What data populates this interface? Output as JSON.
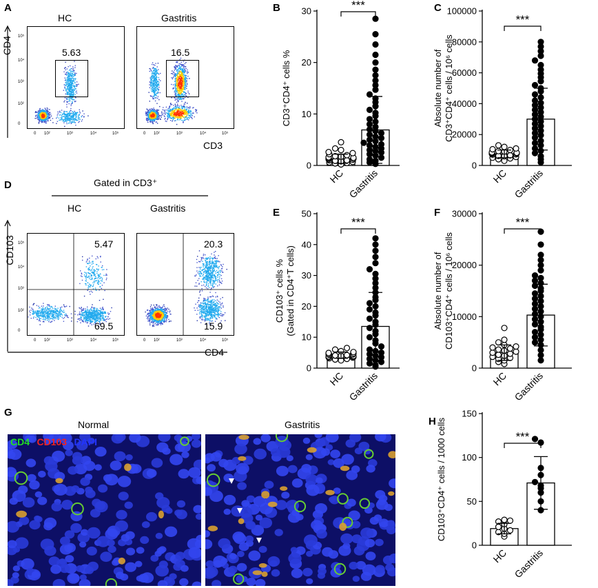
{
  "panels": {
    "A": {
      "label": "A",
      "groups": [
        "HC",
        "Gastritis"
      ],
      "yaxis": "CD4",
      "xaxis": "CD3",
      "gate_values": [
        "5.63",
        "16.5"
      ],
      "yticks": [
        "10⁵",
        "10⁴",
        "10³",
        "10²",
        "0"
      ],
      "xticks": [
        "0",
        "10²",
        "10³",
        "10⁴",
        "10⁵"
      ]
    },
    "D": {
      "label": "D",
      "header": "Gated in CD3⁺",
      "groups": [
        "HC",
        "Gastritis"
      ],
      "yaxis": "CD103",
      "xaxis": "CD4",
      "quadrant_values": {
        "hc_upper": "5.47",
        "hc_lower": "69.5",
        "gas_upper": "20.3",
        "gas_lower": "15.9"
      },
      "yticks": [
        "10⁵",
        "10⁴",
        "10³",
        "10²",
        "0"
      ],
      "xticks": [
        "0",
        "10²",
        "10³",
        "10⁴",
        "10⁵"
      ]
    },
    "G": {
      "label": "G",
      "titles": [
        "Normal",
        "Gastritis"
      ],
      "legend": [
        {
          "text": "CD4",
          "color": "#22dd22"
        },
        {
          "text": "CD103",
          "color": "#ee2222"
        },
        {
          "text": "DAPI",
          "color": "#2233ff"
        }
      ]
    }
  },
  "chart_data": [
    {
      "panel": "B",
      "type": "scatter",
      "categories": [
        "HC",
        "Gastritis"
      ],
      "ylabel": "CD3⁺CD4⁺ cells %",
      "ylim": [
        0,
        30
      ],
      "yticks": [
        0,
        10,
        20,
        30
      ],
      "significance": "***",
      "series": [
        {
          "group": "HC",
          "mean": 1.3,
          "sd": 0.9,
          "values": [
            0.2,
            0.4,
            0.5,
            0.6,
            0.7,
            0.8,
            0.9,
            1.0,
            1.0,
            1.1,
            1.2,
            1.3,
            1.4,
            1.5,
            1.6,
            1.7,
            1.8,
            2.0,
            2.2,
            2.4,
            2.6,
            3.0,
            3.3,
            4.5
          ]
        },
        {
          "group": "Gastritis",
          "mean": 6.9,
          "sd": 6.5,
          "values": [
            0.3,
            0.6,
            0.9,
            1.2,
            1.5,
            1.9,
            2.2,
            2.5,
            2.8,
            3.0,
            3.3,
            3.6,
            3.9,
            4.1,
            4.4,
            4.7,
            5.0,
            5.3,
            5.6,
            6.0,
            6.3,
            6.7,
            7.0,
            7.5,
            8.0,
            8.5,
            9.0,
            9.6,
            10.2,
            10.8,
            11.5,
            12.3,
            13.0,
            13.8,
            14.7,
            15.6,
            16.5,
            17.5,
            18.6,
            20.0,
            21.5,
            23.5,
            25.5,
            28.5
          ]
        }
      ]
    },
    {
      "panel": "C",
      "type": "scatter",
      "categories": [
        "HC",
        "Gastritis"
      ],
      "ylabel": "Absolute number of CD3⁺CD4⁺ cells / 10⁶ cells",
      "ylim": [
        0,
        100000
      ],
      "yticks": [
        0,
        20000,
        40000,
        60000,
        80000,
        100000
      ],
      "significance": "***",
      "series": [
        {
          "group": "HC",
          "mean": 7500,
          "sd": 2500,
          "values": [
            3000,
            4000,
            4500,
            5000,
            5500,
            6000,
            6200,
            6500,
            7000,
            7200,
            7500,
            7800,
            8000,
            8200,
            8500,
            9000,
            9300,
            10000,
            10500,
            11000,
            12000,
            13000
          ]
        },
        {
          "group": "Gastritis",
          "mean": 30000,
          "sd": 20000,
          "values": [
            2000,
            4000,
            6000,
            8000,
            9500,
            11000,
            13000,
            14500,
            16000,
            18000,
            19500,
            21000,
            22500,
            24000,
            25500,
            27000,
            28500,
            30000,
            31500,
            33000,
            34500,
            36000,
            37500,
            39000,
            40500,
            42000,
            44000,
            46000,
            48000,
            50000,
            52000,
            54500,
            57000,
            59500,
            62000,
            65000,
            68000,
            71000,
            74000,
            77000,
            80000
          ]
        }
      ]
    },
    {
      "panel": "E",
      "type": "scatter",
      "categories": [
        "HC",
        "Gastritis"
      ],
      "ylabel": "CD103⁺ cells % (Gated in CD4⁺T cells)",
      "ylim": [
        0,
        50
      ],
      "yticks": [
        0,
        10,
        20,
        30,
        40,
        50
      ],
      "significance": "***",
      "series": [
        {
          "group": "HC",
          "mean": 4.2,
          "sd": 1.0,
          "values": [
            2.5,
            2.8,
            3.0,
            3.2,
            3.4,
            3.5,
            3.6,
            3.8,
            3.9,
            4.0,
            4.1,
            4.2,
            4.3,
            4.4,
            4.5,
            4.7,
            4.9,
            5.2,
            5.5,
            6.0,
            6.5
          ]
        },
        {
          "group": "Gastritis",
          "mean": 13.5,
          "sd": 11,
          "values": [
            0.5,
            1.0,
            1.5,
            2.0,
            2.5,
            3.0,
            3.5,
            4.0,
            4.5,
            5.0,
            5.5,
            6.0,
            7.0,
            8.0,
            9.0,
            10.0,
            11.0,
            12.0,
            13.0,
            14.0,
            15.0,
            16.0,
            17.0,
            18.0,
            19.0,
            20.0,
            21.0,
            22.0,
            23.0,
            24.5,
            26.0,
            27.5,
            29.0,
            30.5,
            32.0,
            34.0,
            36.0,
            38.0,
            40.0,
            42.0
          ]
        }
      ]
    },
    {
      "panel": "F",
      "type": "scatter",
      "categories": [
        "HC",
        "Gastritis"
      ],
      "ylabel": "Absolute number of CD103⁺CD4⁺ cells / 10⁶ cells",
      "ylim": [
        0,
        30000
      ],
      "yticks": [
        0,
        10000,
        20000,
        30000
      ],
      "significance": "***",
      "series": [
        {
          "group": "HC",
          "mean": 3000,
          "sd": 1500,
          "values": [
            800,
            1200,
            1500,
            1800,
            2000,
            2200,
            2400,
            2600,
            2800,
            3000,
            3200,
            3400,
            3600,
            3800,
            4000,
            4200,
            4500,
            5000,
            5500,
            7800
          ]
        },
        {
          "group": "Gastritis",
          "mean": 10300,
          "sd": 6000,
          "values": [
            1500,
            2500,
            3500,
            4500,
            5000,
            5500,
            6000,
            6500,
            7000,
            7500,
            8000,
            8500,
            9000,
            9500,
            10000,
            10500,
            11000,
            11500,
            12000,
            12500,
            13000,
            13500,
            14000,
            14500,
            15000,
            15500,
            16000,
            16500,
            17000,
            17500,
            18000,
            19000,
            20000,
            21000,
            22000,
            24000,
            26500
          ]
        }
      ]
    },
    {
      "panel": "H",
      "type": "scatter",
      "categories": [
        "HC",
        "Gastritis"
      ],
      "ylabel": "CD103⁺CD4⁺ cells / 1000 cells",
      "ylim": [
        0,
        150
      ],
      "yticks": [
        0,
        50,
        100,
        150
      ],
      "significance": "***",
      "series": [
        {
          "group": "HC",
          "mean": 19,
          "sd": 6,
          "values": [
            10,
            13,
            15,
            17,
            19,
            21,
            24,
            27,
            28,
            29
          ]
        },
        {
          "group": "Gastritis",
          "mean": 71,
          "sd": 30,
          "values": [
            40,
            50,
            60,
            65,
            68,
            72,
            80,
            88,
            117,
            121
          ]
        }
      ]
    }
  ]
}
